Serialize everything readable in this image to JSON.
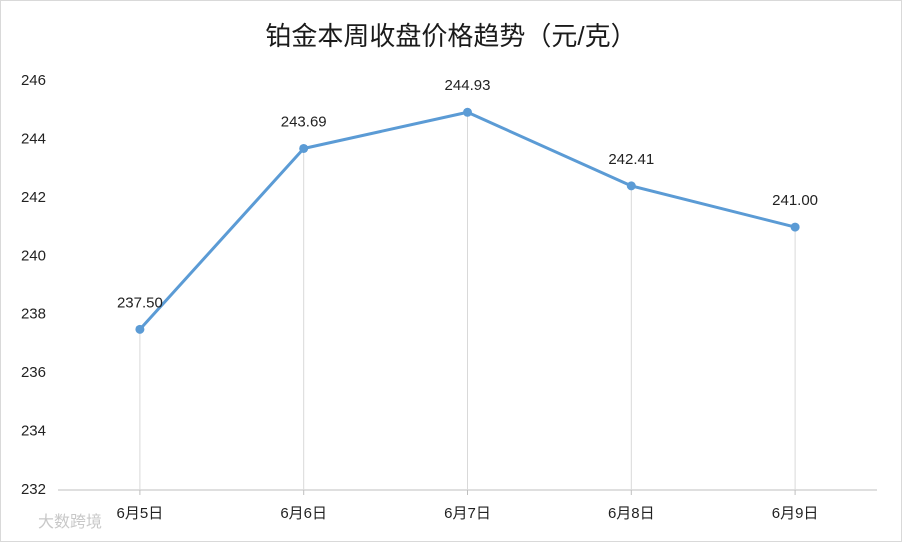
{
  "chart_data": {
    "type": "line",
    "title": "铂金本周收盘价格趋势（元/克）",
    "categories": [
      "6月5日",
      "6月6日",
      "6月7日",
      "6月8日",
      "6月9日"
    ],
    "series": [
      {
        "name": "铂金",
        "color": "#5b9bd5",
        "values": [
          237.5,
          243.69,
          244.93,
          242.41,
          241.0
        ],
        "value_labels": [
          "237.50",
          "243.69",
          "244.93",
          "242.41",
          "241.00"
        ]
      }
    ],
    "ylim": [
      232,
      246
    ],
    "yticks": [
      232,
      234,
      236,
      238,
      240,
      242,
      244,
      246
    ],
    "drop_lines": true,
    "legend": false,
    "watermark": "大数跨境"
  }
}
